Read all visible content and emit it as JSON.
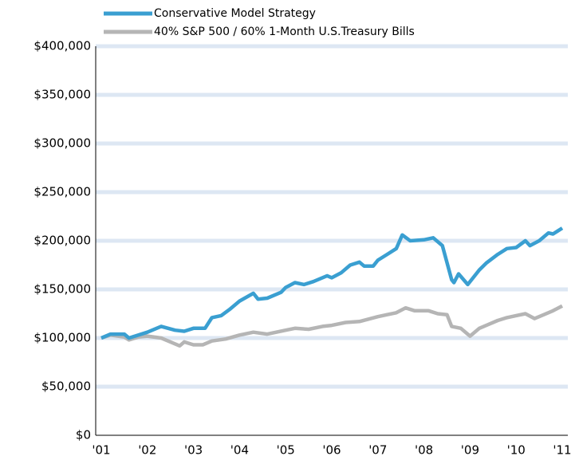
{
  "chart_data": {
    "type": "line",
    "series": [
      {
        "name": "Conservative Model Strategy",
        "color": "#3a9fd1",
        "x": [
          2001.0,
          2001.2,
          2001.5,
          2001.6,
          2002.0,
          2002.3,
          2002.6,
          2002.8,
          2003.0,
          2003.25,
          2003.4,
          2003.6,
          2003.8,
          2004.0,
          2004.3,
          2004.4,
          2004.6,
          2004.9,
          2005.0,
          2005.2,
          2005.4,
          2005.6,
          2005.9,
          2006.0,
          2006.2,
          2006.4,
          2006.6,
          2006.7,
          2006.9,
          2007.0,
          2007.2,
          2007.4,
          2007.53,
          2007.7,
          2008.0,
          2008.2,
          2008.4,
          2008.6,
          2008.65,
          2008.75,
          2008.95,
          2009.2,
          2009.35,
          2009.6,
          2009.8,
          2010.0,
          2010.2,
          2010.3,
          2010.5,
          2010.7,
          2010.8,
          2010.9,
          2011.0
        ],
        "values": [
          100000,
          104000,
          104000,
          100000,
          106000,
          112000,
          108000,
          107000,
          110000,
          110000,
          121000,
          123000,
          130000,
          138000,
          146000,
          140000,
          141000,
          147000,
          152000,
          157000,
          155000,
          158000,
          164000,
          162000,
          167000,
          175000,
          178000,
          174000,
          174000,
          180000,
          186000,
          192000,
          206000,
          200000,
          201000,
          203000,
          195000,
          160000,
          157000,
          166000,
          155000,
          170000,
          177000,
          186000,
          192000,
          193000,
          200000,
          195000,
          200000,
          208000,
          207000,
          210000,
          213000
        ]
      },
      {
        "name": "40% S&P 500 / 60% 1-Month U.S.Treasury Bills",
        "color": "#b5b5b5",
        "x": [
          2001.0,
          2001.2,
          2001.5,
          2001.6,
          2001.8,
          2002.0,
          2002.3,
          2002.5,
          2002.7,
          2002.8,
          2003.0,
          2003.2,
          2003.4,
          2003.7,
          2004.0,
          2004.3,
          2004.6,
          2005.0,
          2005.2,
          2005.5,
          2005.8,
          2006.0,
          2006.3,
          2006.6,
          2007.0,
          2007.2,
          2007.4,
          2007.6,
          2007.8,
          2008.1,
          2008.3,
          2008.5,
          2008.6,
          2008.8,
          2009.0,
          2009.2,
          2009.4,
          2009.6,
          2009.8,
          2010.0,
          2010.2,
          2010.4,
          2010.6,
          2010.8,
          2011.0
        ],
        "values": [
          100000,
          103000,
          101000,
          98000,
          101000,
          102000,
          100000,
          96000,
          92000,
          96000,
          93000,
          93000,
          97000,
          99000,
          103000,
          106000,
          104000,
          108000,
          110000,
          109000,
          112000,
          113000,
          116000,
          117000,
          122000,
          124000,
          126000,
          131000,
          128000,
          128000,
          125000,
          124000,
          112000,
          110000,
          102000,
          110000,
          114000,
          118000,
          121000,
          123000,
          125000,
          120000,
          124000,
          128000,
          133000
        ]
      }
    ],
    "xlim": [
      2001,
      2011
    ],
    "xticks": [
      {
        "value": 2001,
        "label": "'01"
      },
      {
        "value": 2002,
        "label": "'02"
      },
      {
        "value": 2003,
        "label": "'03"
      },
      {
        "value": 2004,
        "label": "'04"
      },
      {
        "value": 2005,
        "label": "'05"
      },
      {
        "value": 2006,
        "label": "'06"
      },
      {
        "value": 2007,
        "label": "'07"
      },
      {
        "value": 2008,
        "label": "'08"
      },
      {
        "value": 2009,
        "label": "'09"
      },
      {
        "value": 2010,
        "label": "'10"
      },
      {
        "value": 2011,
        "label": "'11"
      }
    ],
    "ylim": [
      0,
      400000
    ],
    "yticks": [
      {
        "value": 0,
        "label": "$0"
      },
      {
        "value": 50000,
        "label": "$50,000"
      },
      {
        "value": 100000,
        "label": "$100,000"
      },
      {
        "value": 150000,
        "label": "$150,000"
      },
      {
        "value": 200000,
        "label": "$200,000"
      },
      {
        "value": 250000,
        "label": "$250,000"
      },
      {
        "value": 300000,
        "label": "$300,000"
      },
      {
        "value": 350000,
        "label": "$350,000"
      },
      {
        "value": 400000,
        "label": "$400,000"
      }
    ],
    "grid": true,
    "legend": "top"
  }
}
